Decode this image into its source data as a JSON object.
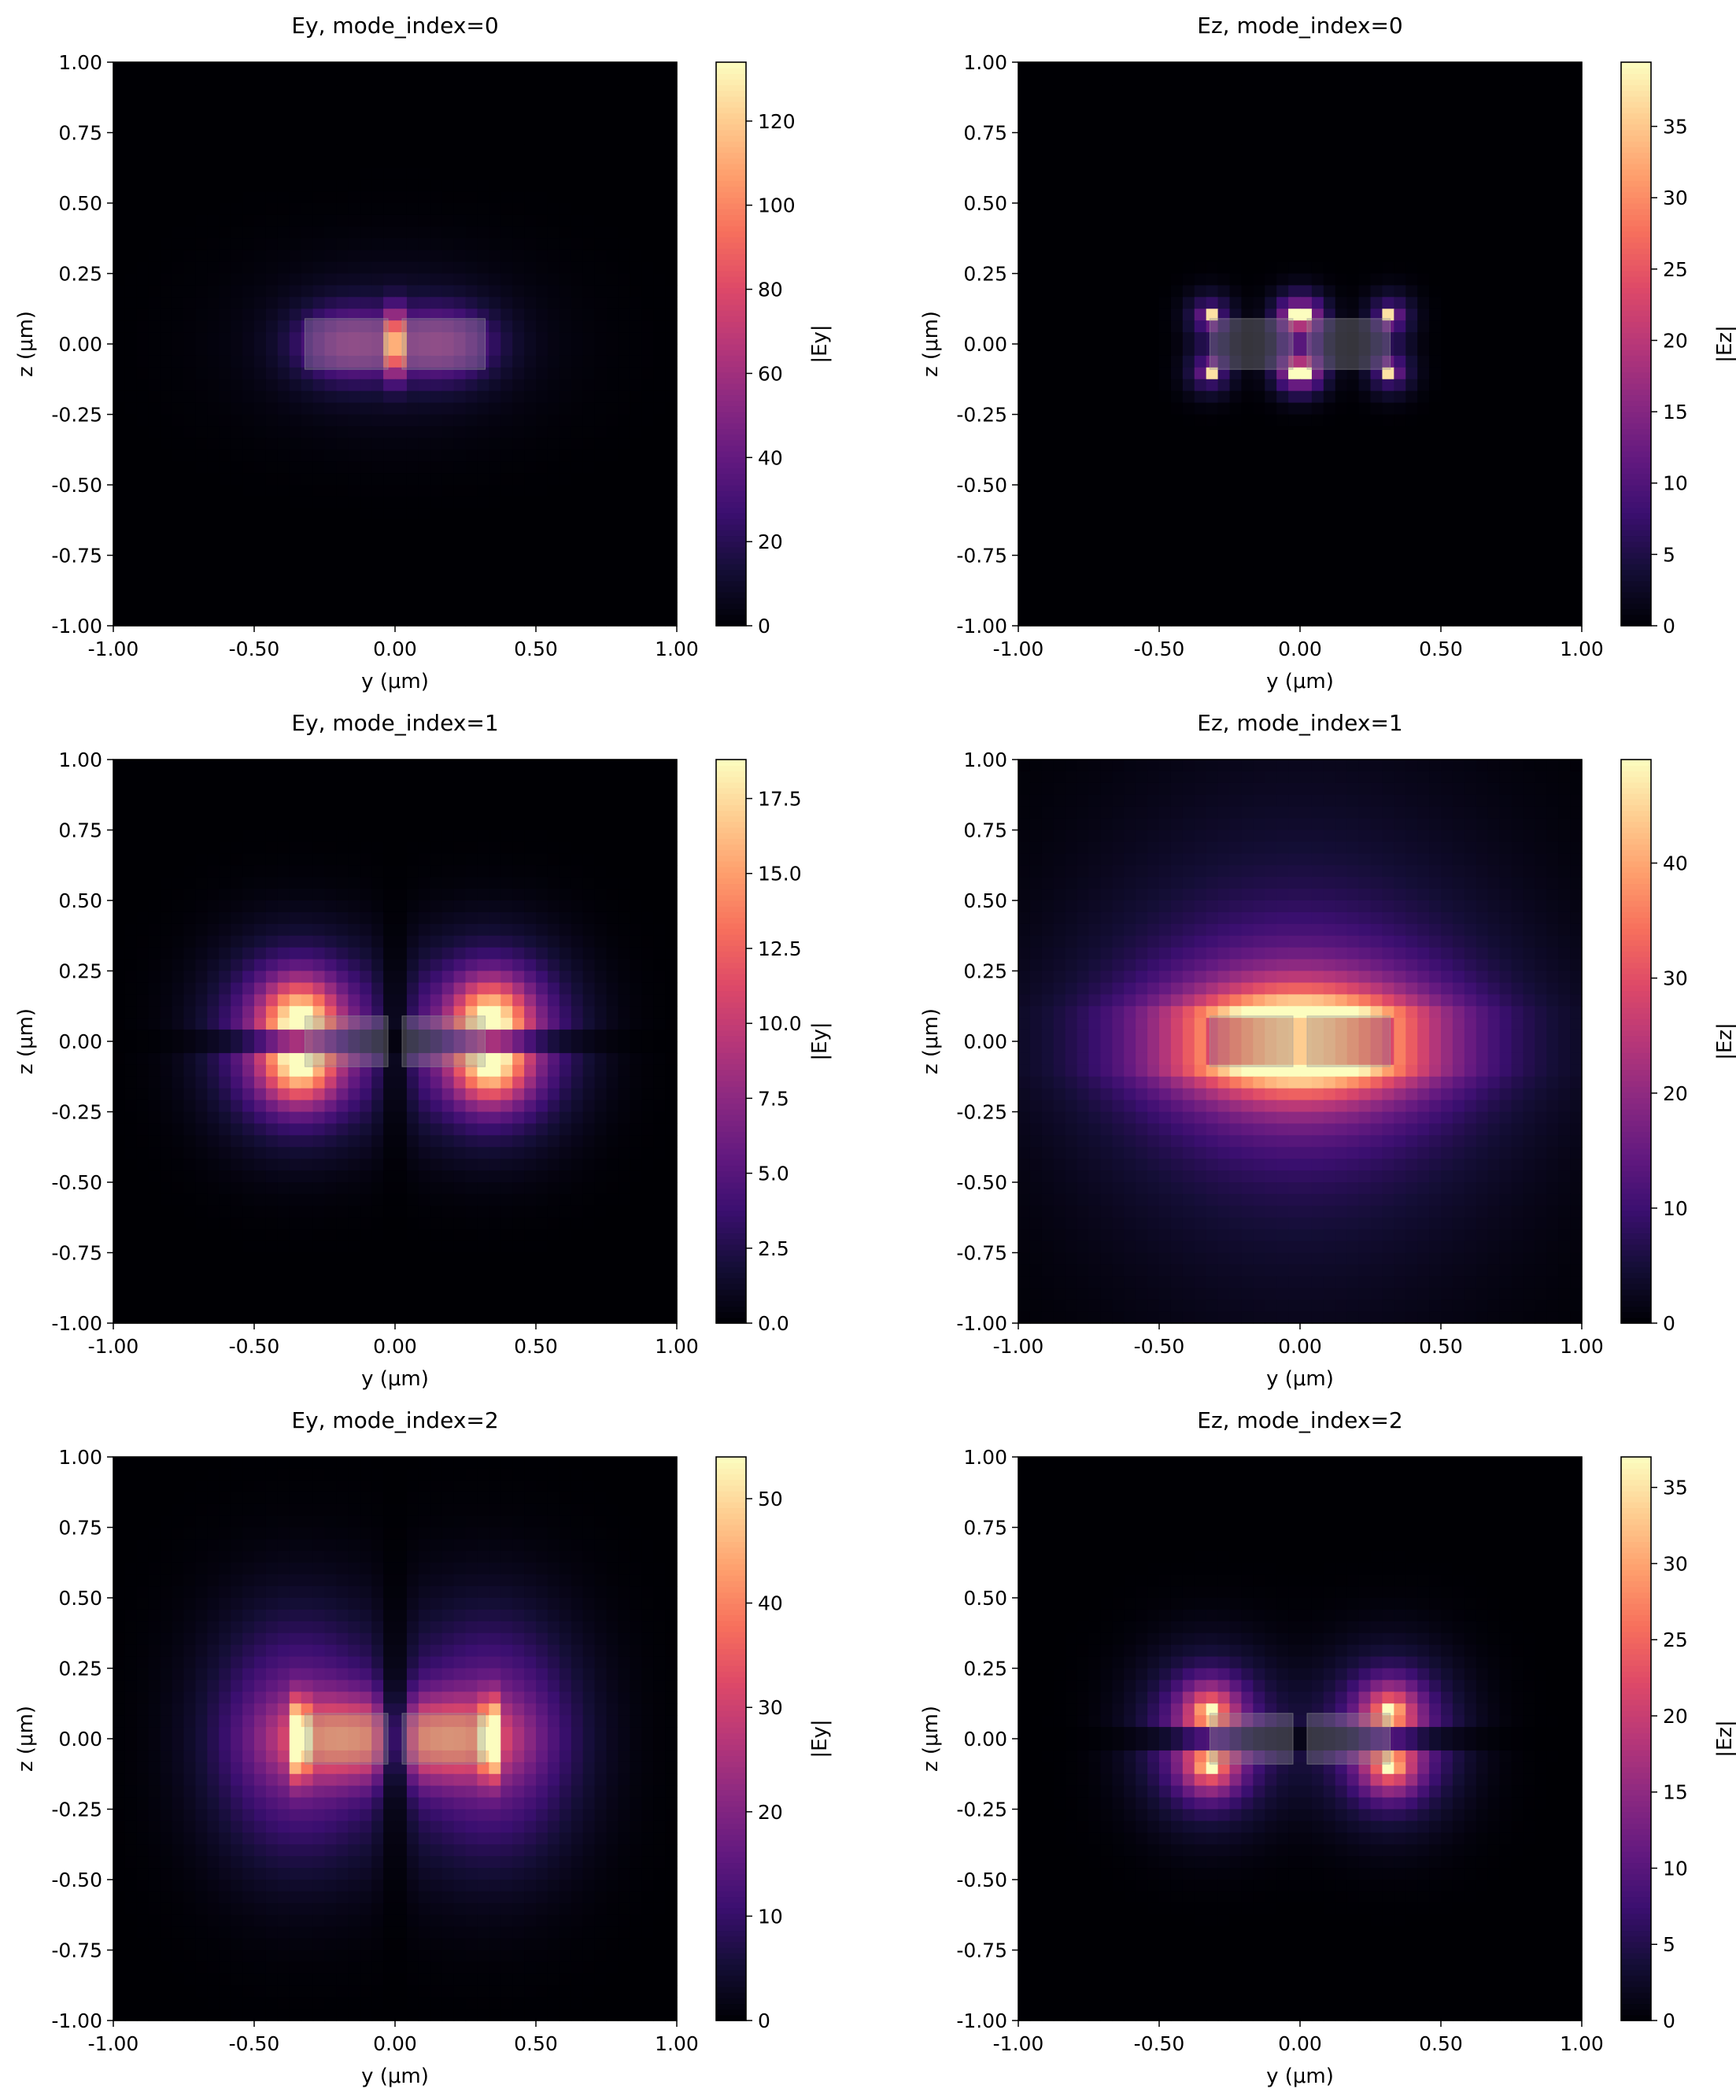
{
  "chart_data": [
    {
      "type": "heatmap",
      "title": "Ey, mode_index=0",
      "xlabel": "y (μm)",
      "ylabel": "z (μm)",
      "colorbar_label": "|Ey|",
      "colormap": "magma",
      "x_range": [
        -1.0,
        1.0
      ],
      "y_range": [
        -1.0,
        1.0
      ],
      "x_ticks": [
        "-1.00",
        "-0.50",
        "0.00",
        "0.50",
        "1.00"
      ],
      "y_ticks": [
        "1.00",
        "0.75",
        "0.50",
        "0.25",
        "0.00",
        "-0.25",
        "-0.50",
        "-0.75",
        "-1.00"
      ],
      "colorbar_range": [
        0,
        134
      ],
      "colorbar_ticks": [
        "0",
        "20",
        "40",
        "60",
        "80",
        "100",
        "120"
      ],
      "colorbar_tick_values": [
        0,
        20,
        40,
        60,
        80,
        100,
        120
      ],
      "waveguides": [
        {
          "y": [
            -0.32,
            -0.025
          ],
          "z": [
            -0.09,
            0.09
          ]
        },
        {
          "y": [
            0.025,
            0.32
          ],
          "z": [
            -0.09,
            0.09
          ]
        }
      ],
      "field_pattern": "gap peak at y=0, uniform glow inside both strips"
    },
    {
      "type": "heatmap",
      "title": "Ez, mode_index=0",
      "xlabel": "y (μm)",
      "ylabel": "z (μm)",
      "colorbar_label": "|Ez|",
      "colormap": "magma",
      "x_range": [
        -1.0,
        1.0
      ],
      "y_range": [
        -1.0,
        1.0
      ],
      "x_ticks": [
        "-1.00",
        "-0.50",
        "0.00",
        "0.50",
        "1.00"
      ],
      "y_ticks": [
        "1.00",
        "0.75",
        "0.50",
        "0.25",
        "0.00",
        "-0.25",
        "-0.50",
        "-0.75",
        "-1.00"
      ],
      "colorbar_range": [
        0,
        39.5
      ],
      "colorbar_ticks": [
        "0",
        "5",
        "10",
        "15",
        "20",
        "25",
        "30",
        "35"
      ],
      "colorbar_tick_values": [
        0,
        5,
        10,
        15,
        20,
        25,
        30,
        35
      ],
      "waveguides": [
        {
          "y": [
            -0.32,
            -0.025
          ],
          "z": [
            -0.09,
            0.09
          ]
        },
        {
          "y": [
            0.025,
            0.32
          ],
          "z": [
            -0.09,
            0.09
          ]
        }
      ],
      "field_pattern": "hot spots at the 8 strip corners"
    },
    {
      "type": "heatmap",
      "title": "Ey, mode_index=1",
      "xlabel": "y (μm)",
      "ylabel": "z (μm)",
      "colorbar_label": "|Ey|",
      "colormap": "magma",
      "x_range": [
        -1.0,
        1.0
      ],
      "y_range": [
        -1.0,
        1.0
      ],
      "x_ticks": [
        "-1.00",
        "-0.50",
        "0.00",
        "0.50",
        "1.00"
      ],
      "y_ticks": [
        "1.00",
        "0.75",
        "0.50",
        "0.25",
        "0.00",
        "-0.25",
        "-0.50",
        "-0.75",
        "-1.00"
      ],
      "colorbar_range": [
        0,
        18.8
      ],
      "colorbar_ticks": [
        "0.0",
        "2.5",
        "5.0",
        "7.5",
        "10.0",
        "12.5",
        "15.0",
        "17.5"
      ],
      "colorbar_tick_values": [
        0,
        2.5,
        5,
        7.5,
        10,
        12.5,
        15,
        17.5
      ],
      "waveguides": [
        {
          "y": [
            -0.32,
            -0.025
          ],
          "z": [
            -0.09,
            0.09
          ]
        },
        {
          "y": [
            0.025,
            0.32
          ],
          "z": [
            -0.09,
            0.09
          ]
        }
      ],
      "field_pattern": "quadrupole lobes at outer corners, nulls along y=0 and z=0"
    },
    {
      "type": "heatmap",
      "title": "Ez, mode_index=1",
      "xlabel": "y (μm)",
      "ylabel": "z (μm)",
      "colorbar_label": "|Ez|",
      "colormap": "magma",
      "x_range": [
        -1.0,
        1.0
      ],
      "y_range": [
        -1.0,
        1.0
      ],
      "x_ticks": [
        "-1.00",
        "-0.50",
        "0.00",
        "0.50",
        "1.00"
      ],
      "y_ticks": [
        "1.00",
        "0.75",
        "0.50",
        "0.25",
        "0.00",
        "-0.25",
        "-0.50",
        "-0.75",
        "-1.00"
      ],
      "colorbar_range": [
        0,
        49
      ],
      "colorbar_ticks": [
        "0",
        "10",
        "20",
        "30",
        "40"
      ],
      "colorbar_tick_values": [
        0,
        10,
        20,
        30,
        40
      ],
      "waveguides": [
        {
          "y": [
            -0.32,
            -0.025
          ],
          "z": [
            -0.09,
            0.09
          ]
        },
        {
          "y": [
            0.025,
            0.32
          ],
          "z": [
            -0.09,
            0.09
          ]
        }
      ],
      "field_pattern": "broad mode, bright bands just above and below the strips"
    },
    {
      "type": "heatmap",
      "title": "Ey, mode_index=2",
      "xlabel": "y (μm)",
      "ylabel": "z (μm)",
      "colorbar_label": "|Ey|",
      "colormap": "magma",
      "x_range": [
        -1.0,
        1.0
      ],
      "y_range": [
        -1.0,
        1.0
      ],
      "x_ticks": [
        "-1.00",
        "-0.50",
        "0.00",
        "0.50",
        "1.00"
      ],
      "y_ticks": [
        "1.00",
        "0.75",
        "0.50",
        "0.25",
        "0.00",
        "-0.25",
        "-0.50",
        "-0.75",
        "-1.00"
      ],
      "colorbar_range": [
        0,
        54
      ],
      "colorbar_ticks": [
        "0",
        "10",
        "20",
        "30",
        "40",
        "50"
      ],
      "colorbar_tick_values": [
        0,
        10,
        20,
        30,
        40,
        50
      ],
      "waveguides": [
        {
          "y": [
            -0.32,
            -0.025
          ],
          "z": [
            -0.09,
            0.09
          ]
        },
        {
          "y": [
            0.025,
            0.32
          ],
          "z": [
            -0.09,
            0.09
          ]
        }
      ],
      "field_pattern": "peaks at outer strip edges, dark null line along y=0"
    },
    {
      "type": "heatmap",
      "title": "Ez, mode_index=2",
      "xlabel": "y (μm)",
      "ylabel": "z (μm)",
      "colorbar_label": "|Ez|",
      "colormap": "magma",
      "x_range": [
        -1.0,
        1.0
      ],
      "y_range": [
        -1.0,
        1.0
      ],
      "x_ticks": [
        "-1.00",
        "-0.50",
        "0.00",
        "0.50",
        "1.00"
      ],
      "y_ticks": [
        "1.00",
        "0.75",
        "0.50",
        "0.25",
        "0.00",
        "-0.25",
        "-0.50",
        "-0.75",
        "-1.00"
      ],
      "colorbar_range": [
        0,
        37
      ],
      "colorbar_ticks": [
        "0",
        "5",
        "10",
        "15",
        "20",
        "25",
        "30",
        "35"
      ],
      "colorbar_tick_values": [
        0,
        5,
        10,
        15,
        20,
        25,
        30,
        35
      ],
      "waveguides": [
        {
          "y": [
            -0.32,
            -0.025
          ],
          "z": [
            -0.09,
            0.09
          ]
        },
        {
          "y": [
            0.025,
            0.32
          ],
          "z": [
            -0.09,
            0.09
          ]
        }
      ],
      "field_pattern": "hot spots at the 4 outer corners, null along z=0"
    }
  ]
}
